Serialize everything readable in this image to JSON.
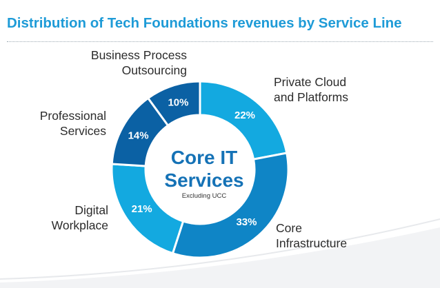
{
  "title": "Distribution of Tech Foundations revenues by Service Line",
  "center": {
    "line1": "Core IT",
    "line2": "Services",
    "subtitle": "Excluding UCC"
  },
  "chart_data": {
    "type": "pie",
    "variant": "donut",
    "title": "Distribution of Tech Foundations revenues by Service Line",
    "categories": [
      "Private Cloud and Platforms",
      "Core Infrastructure",
      "Digital Workplace",
      "Professional Services",
      "Business Process Outsourcing"
    ],
    "labels": [
      {
        "line1": "Private Cloud",
        "line2": "and Platforms"
      },
      {
        "line1": "Core",
        "line2": "Infrastructure"
      },
      {
        "line1": "Digital",
        "line2": "Workplace"
      },
      {
        "line1": "Professional",
        "line2": "Services"
      },
      {
        "line1": "Business Process",
        "line2": "Outsourcing"
      }
    ],
    "values": [
      22,
      33,
      21,
      14,
      10
    ],
    "value_labels": [
      "22%",
      "33%",
      "21%",
      "14%",
      "10%"
    ],
    "colors": [
      "#13a9e0",
      "#0f85c6",
      "#13a9e0",
      "#0b61a4",
      "#0b61a4"
    ],
    "legend": "none"
  }
}
